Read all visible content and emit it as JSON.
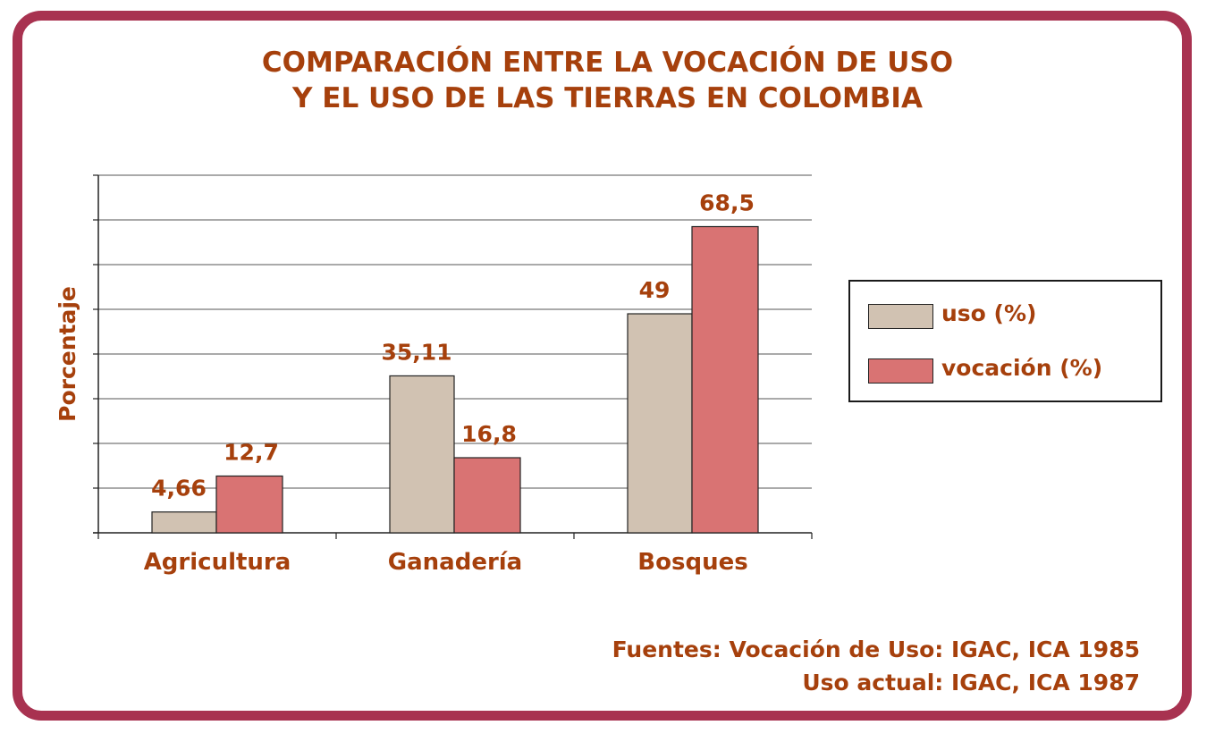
{
  "title": {
    "line1": "COMPARACIÓN ENTRE LA VOCACIÓN DE USO",
    "line2": "Y EL USO DE LAS TIERRAS EN COLOMBIA"
  },
  "chart_data": {
    "type": "bar",
    "title": "COMPARACIÓN ENTRE LA VOCACIÓN DE USO Y EL USO DE LAS TIERRAS EN COLOMBIA",
    "ylabel": "Porcentaje",
    "xlabel": "",
    "categories": [
      "Agricultura",
      "Ganadería",
      "Bosques"
    ],
    "series": [
      {
        "name": "uso (%)",
        "values": [
          4.66,
          35.11,
          49
        ],
        "labels": [
          "4,66",
          "35,11",
          "49"
        ],
        "color": "#d1c2b2"
      },
      {
        "name": "vocación (%)",
        "values": [
          12.7,
          16.8,
          68.5
        ],
        "labels": [
          "12,7",
          "16,8",
          "68,5"
        ],
        "color": "#d97373"
      }
    ],
    "ylim": [
      0,
      80
    ],
    "grid": true,
    "legend": "right"
  },
  "source": {
    "line1": "Fuentes: Vocación de Uso: IGAC, ICA 1985",
    "line2": "Uso actual: IGAC, ICA 1987"
  },
  "colors": {
    "frame": "#a83250",
    "text": "#a6400c"
  }
}
